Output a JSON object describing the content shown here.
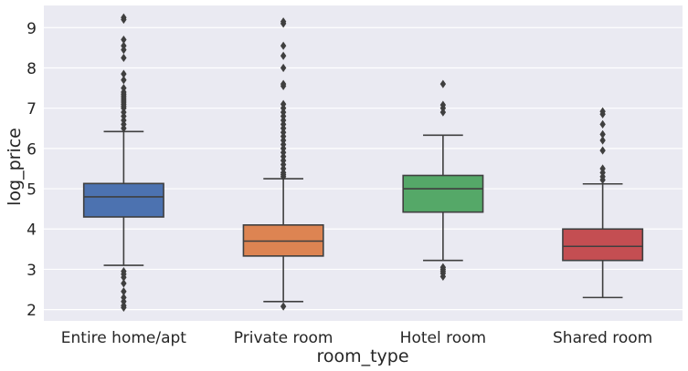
{
  "chart_data": {
    "type": "boxplot",
    "xlabel": "room_type",
    "ylabel": "log_price",
    "ylim": [
      1.72,
      9.55
    ],
    "yticks": [
      2,
      3,
      4,
      5,
      6,
      7,
      8,
      9
    ],
    "grid": true,
    "categories": [
      "Entire home/apt",
      "Private room",
      "Hotel room",
      "Shared room"
    ],
    "colors": [
      "#4c72b0",
      "#dd8452",
      "#55a868",
      "#c44e52"
    ],
    "boxes": [
      {
        "name": "Entire home/apt",
        "whisker_low": 3.1,
        "q1": 4.3,
        "median": 4.8,
        "q3": 5.13,
        "whisker_high": 6.42,
        "outliers_low": [
          2.05,
          2.1,
          2.2,
          2.3,
          2.45,
          2.65,
          2.8,
          2.88,
          2.95
        ],
        "outliers_high": [
          6.5,
          6.6,
          6.7,
          6.8,
          6.9,
          7.0,
          7.05,
          7.1,
          7.15,
          7.2,
          7.25,
          7.3,
          7.35,
          7.4,
          7.5,
          7.7,
          7.85,
          8.25,
          8.45,
          8.55,
          8.7,
          9.2,
          9.25
        ]
      },
      {
        "name": "Private room",
        "whisker_low": 2.2,
        "q1": 3.33,
        "median": 3.7,
        "q3": 4.1,
        "whisker_high": 5.25,
        "outliers_low": [
          2.08
        ],
        "outliers_high": [
          5.3,
          5.35,
          5.4,
          5.5,
          5.6,
          5.7,
          5.8,
          5.9,
          6.0,
          6.1,
          6.2,
          6.3,
          6.4,
          6.5,
          6.6,
          6.7,
          6.8,
          6.9,
          7.0,
          7.1,
          7.55,
          7.6,
          8.0,
          8.3,
          8.55,
          9.1,
          9.15
        ]
      },
      {
        "name": "Hotel room",
        "whisker_low": 3.22,
        "q1": 4.42,
        "median": 5.0,
        "q3": 5.33,
        "whisker_high": 6.33,
        "outliers_low": [
          2.82,
          2.9,
          2.95,
          3.0,
          3.05
        ],
        "outliers_high": [
          6.9,
          7.0,
          7.08,
          7.6
        ]
      },
      {
        "name": "Shared room",
        "whisker_low": 2.3,
        "q1": 3.22,
        "median": 3.57,
        "q3": 4.0,
        "whisker_high": 5.12,
        "outliers_low": [],
        "outliers_high": [
          5.22,
          5.3,
          5.4,
          5.5,
          5.95,
          6.2,
          6.35,
          6.6,
          6.85,
          6.92
        ]
      }
    ]
  }
}
